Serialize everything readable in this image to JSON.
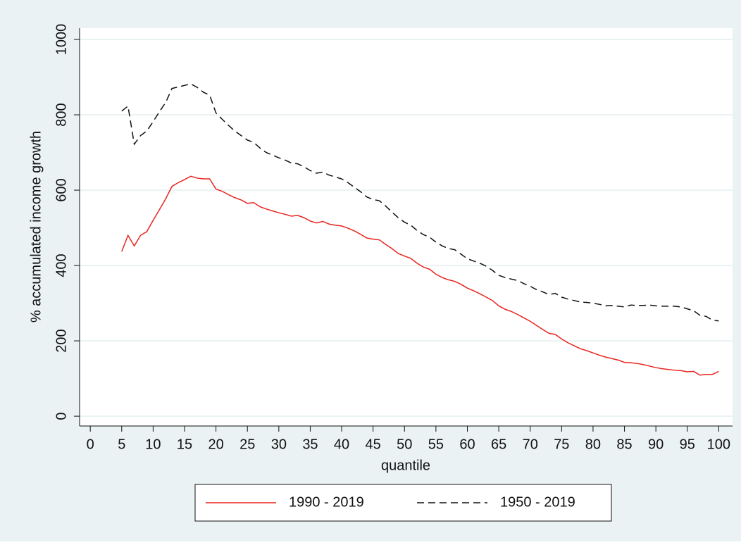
{
  "chart_data": {
    "type": "line",
    "ylabel": "% accumulated income growth",
    "xlabel": "quantile",
    "x": [
      5,
      6,
      7,
      8,
      9,
      10,
      11,
      12,
      13,
      14,
      15,
      16,
      17,
      18,
      19,
      20,
      21,
      22,
      23,
      24,
      25,
      26,
      27,
      28,
      29,
      30,
      31,
      32,
      33,
      34,
      35,
      36,
      37,
      38,
      39,
      40,
      41,
      42,
      43,
      44,
      45,
      46,
      47,
      48,
      49,
      50,
      51,
      52,
      53,
      54,
      55,
      56,
      57,
      58,
      59,
      60,
      61,
      62,
      63,
      64,
      65,
      66,
      67,
      68,
      69,
      70,
      71,
      72,
      73,
      74,
      75,
      76,
      77,
      78,
      79,
      80,
      81,
      82,
      83,
      84,
      85,
      86,
      87,
      88,
      89,
      90,
      91,
      92,
      93,
      94,
      95,
      96,
      97,
      98,
      99,
      100
    ],
    "series": [
      {
        "name": "1990 - 2019",
        "color": "#e8241f",
        "dashed": false,
        "values": [
          437,
          480,
          452,
          480,
          490,
          520,
          548,
          577,
          610,
          620,
          628,
          637,
          632,
          630,
          630,
          603,
          597,
          588,
          580,
          574,
          565,
          567,
          556,
          550,
          545,
          540,
          536,
          531,
          533,
          527,
          518,
          513,
          517,
          510,
          507,
          505,
          499,
          492,
          483,
          473,
          470,
          468,
          456,
          445,
          432,
          425,
          419,
          406,
          396,
          390,
          377,
          368,
          362,
          358,
          350,
          340,
          333,
          325,
          316,
          307,
          293,
          284,
          278,
          270,
          261,
          252,
          241,
          230,
          220,
          217,
          205,
          195,
          187,
          179,
          174,
          168,
          162,
          157,
          153,
          149,
          143,
          142,
          140,
          137,
          133,
          129,
          126,
          124,
          122,
          121,
          118,
          119,
          109,
          111,
          111,
          119
        ]
      },
      {
        "name": "1950 - 2019",
        "color": "#111111",
        "dashed": true,
        "values": [
          810,
          823,
          722,
          745,
          757,
          782,
          808,
          833,
          870,
          874,
          878,
          882,
          873,
          860,
          852,
          805,
          788,
          772,
          757,
          745,
          733,
          727,
          712,
          700,
          693,
          686,
          680,
          672,
          670,
          662,
          652,
          645,
          648,
          640,
          635,
          630,
          620,
          608,
          596,
          582,
          575,
          572,
          558,
          542,
          527,
          515,
          507,
          493,
          482,
          475,
          462,
          452,
          445,
          442,
          430,
          418,
          412,
          406,
          398,
          387,
          374,
          368,
          364,
          360,
          352,
          345,
          336,
          330,
          323,
          326,
          316,
          311,
          307,
          303,
          302,
          300,
          297,
          293,
          294,
          292,
          290,
          295,
          294,
          294,
          295,
          293,
          292,
          292,
          292,
          290,
          285,
          280,
          268,
          265,
          255,
          253
        ]
      }
    ],
    "xlim": [
      -1.7,
      102.2
    ],
    "xticks": [
      0,
      5,
      10,
      15,
      20,
      25,
      30,
      35,
      40,
      45,
      50,
      55,
      60,
      65,
      70,
      75,
      80,
      85,
      90,
      95,
      100
    ],
    "ylim": [
      -26,
      1030
    ],
    "yticks": [
      0,
      200,
      400,
      600,
      800,
      1000
    ],
    "grid": true,
    "legend": "bottom"
  }
}
